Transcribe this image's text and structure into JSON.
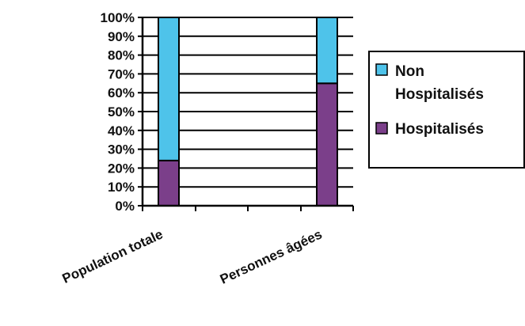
{
  "chart_data": {
    "type": "bar",
    "stacked": true,
    "percent": true,
    "categories": [
      "Population totale",
      "Personnes âgées"
    ],
    "series": [
      {
        "name": "Hospitalisés",
        "values": [
          24,
          65
        ],
        "color": "#7b3f8a"
      },
      {
        "name": "Non Hospitalisés",
        "values": [
          76,
          35
        ],
        "color": "#4ec3ea"
      }
    ],
    "y_ticks": [
      "0%",
      "10%",
      "20%",
      "30%",
      "40%",
      "50%",
      "60%",
      "70%",
      "80%",
      "90%",
      "100%"
    ],
    "ylim": [
      0,
      100
    ],
    "grid": true,
    "legend_position": "right",
    "legend": [
      {
        "lines": [
          "Non",
          "Hospitalisés"
        ],
        "color": "#4ec3ea"
      },
      {
        "lines": [
          "Hospitalisés"
        ],
        "color": "#7b3f8a"
      }
    ]
  }
}
